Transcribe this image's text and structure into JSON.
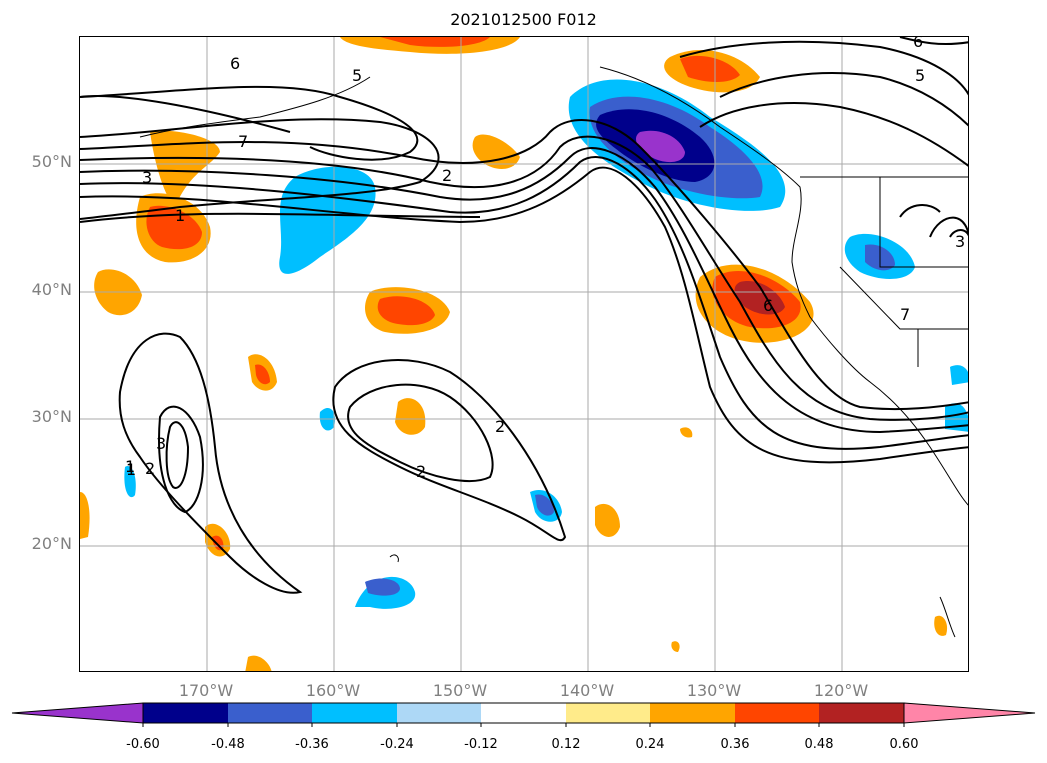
{
  "title": "2021012500 F012",
  "map": {
    "lat_labels": [
      "50°N",
      "40°N",
      "30°N",
      "20°N"
    ],
    "lon_labels": [
      "170°W",
      "160°W",
      "150°W",
      "140°W",
      "130°W",
      "120°W"
    ],
    "contour_labels": [
      "6",
      "5",
      "7",
      "3",
      "1",
      "2",
      "6",
      "5",
      "2",
      "3",
      "2",
      "1",
      "1",
      "2",
      "6",
      "7",
      "3"
    ],
    "fill_colors": {
      "neg_060": "#9933cc",
      "neg_048": "#00008b",
      "neg_036": "#3a5fcd",
      "neg_024": "#00bfff",
      "neg_012": "#add8f6",
      "pos_012": "#ffeb8a",
      "pos_024": "#ffa500",
      "pos_036": "#ff4500",
      "pos_048": "#b22222",
      "pos_060": "#ff85a8"
    }
  },
  "colorbar": {
    "tick_labels": [
      "-0.60",
      "-0.48",
      "-0.36",
      "-0.24",
      "-0.12",
      "0.12",
      "0.24",
      "0.36",
      "0.48",
      "0.60"
    ],
    "colors": [
      "#9933cc",
      "#00008b",
      "#3a5fcd",
      "#00bfff",
      "#add8f6",
      "#ffffff",
      "#ffeb8a",
      "#ffa500",
      "#ff4500",
      "#b22222",
      "#ff85a8"
    ]
  }
}
